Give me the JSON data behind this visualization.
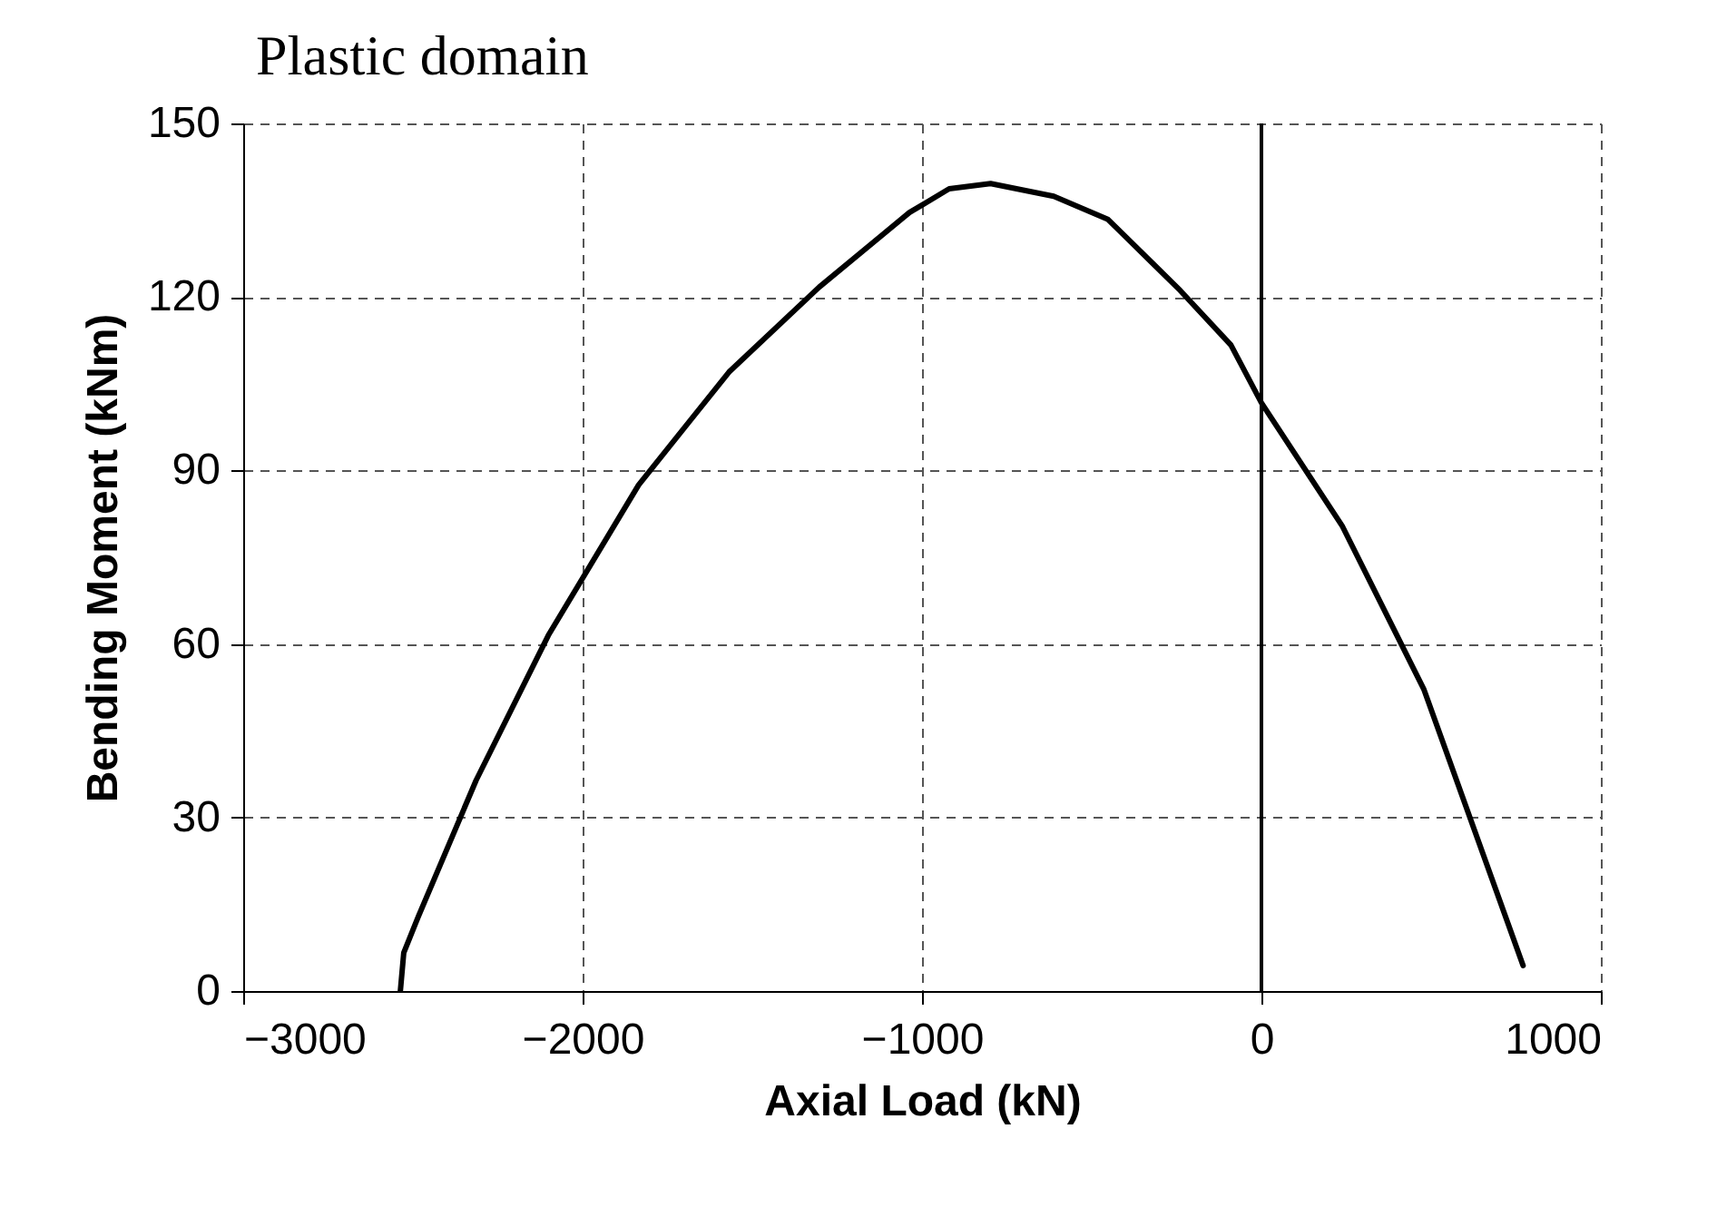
{
  "chart_data": {
    "type": "line",
    "title": "Plastic domain",
    "xlabel": "Axial Load (kN)",
    "ylabel": "Bending Moment (kNm)",
    "xlim": [
      -3000,
      1000
    ],
    "xticks": [
      -3000,
      -2000,
      -1000,
      0,
      1000
    ],
    "ylim": [
      0,
      150
    ],
    "yticks": [
      0,
      30,
      60,
      90,
      120,
      150
    ],
    "grid": true,
    "marker": "none",
    "line_style": "solid",
    "ref_lines": [
      {
        "axis": "x",
        "value": 0,
        "color": "#000000"
      }
    ],
    "series": [
      {
        "color": "#000000",
        "x": [
          -2537,
          -2527,
          -2484,
          -2314,
          -2101,
          -1835,
          -1569,
          -1303,
          -1037,
          -920,
          -798,
          -612,
          -452,
          -239,
          -90,
          0,
          239,
          479,
          771
        ],
        "values": [
          0,
          6.6,
          12.9,
          36.4,
          61.5,
          87.5,
          107,
          121.7,
          134.6,
          138.7,
          139.6,
          137.4,
          133.4,
          121.1,
          111.7,
          101.7,
          80.3,
          52.1,
          4.4
        ]
      }
    ]
  }
}
